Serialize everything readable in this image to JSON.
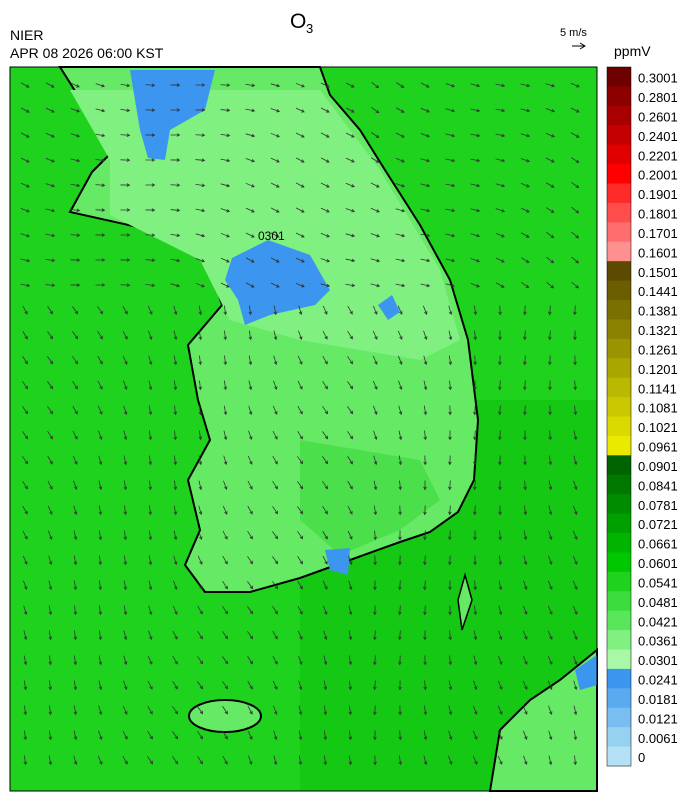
{
  "header": {
    "title": "O",
    "title_subscript": "3",
    "agency": "NIER",
    "datetime": "APR 08 2026 06:00 KST"
  },
  "wind_scale": {
    "label": "5 m/s"
  },
  "map": {
    "station_label": "0301"
  },
  "legend": {
    "unit": "ppmV",
    "items": [
      {
        "label": "0.3001",
        "color": "#6e0000"
      },
      {
        "label": "0.2801",
        "color": "#8c0000"
      },
      {
        "label": "0.2601",
        "color": "#a80000"
      },
      {
        "label": "0.2401",
        "color": "#c40000"
      },
      {
        "label": "0.2201",
        "color": "#e00000"
      },
      {
        "label": "0.2001",
        "color": "#ff0000"
      },
      {
        "label": "0.1901",
        "color": "#ff2a2a"
      },
      {
        "label": "0.1801",
        "color": "#ff4c4c"
      },
      {
        "label": "0.1701",
        "color": "#ff6e6e"
      },
      {
        "label": "0.1601",
        "color": "#ff9090"
      },
      {
        "label": "0.1501",
        "color": "#5c4a00"
      },
      {
        "label": "0.1441",
        "color": "#6b5e00"
      },
      {
        "label": "0.1381",
        "color": "#7a7000"
      },
      {
        "label": "0.1321",
        "color": "#8a8200"
      },
      {
        "label": "0.1261",
        "color": "#9a9400"
      },
      {
        "label": "0.1201",
        "color": "#aaa600"
      },
      {
        "label": "0.1141",
        "color": "#bab800"
      },
      {
        "label": "0.1081",
        "color": "#cac800"
      },
      {
        "label": "0.1021",
        "color": "#dada00"
      },
      {
        "label": "0.0961",
        "color": "#eaea00"
      },
      {
        "label": "0.0901",
        "color": "#006400"
      },
      {
        "label": "0.0841",
        "color": "#007800"
      },
      {
        "label": "0.0781",
        "color": "#008c00"
      },
      {
        "label": "0.0721",
        "color": "#00a000"
      },
      {
        "label": "0.0661",
        "color": "#00b400"
      },
      {
        "label": "0.0601",
        "color": "#00c800"
      },
      {
        "label": "0.0541",
        "color": "#1ed21e"
      },
      {
        "label": "0.0481",
        "color": "#3cdc3c"
      },
      {
        "label": "0.0421",
        "color": "#5ae65a"
      },
      {
        "label": "0.0361",
        "color": "#80f080"
      },
      {
        "label": "0.0301",
        "color": "#a8f8a8"
      },
      {
        "label": "0.0241",
        "color": "#3c96f0"
      },
      {
        "label": "0.0181",
        "color": "#5aaaf0"
      },
      {
        "label": "0.0121",
        "color": "#78bef0"
      },
      {
        "label": "0.0061",
        "color": "#96d2f0"
      },
      {
        "label": "0",
        "color": "#b4e1f5"
      }
    ]
  }
}
